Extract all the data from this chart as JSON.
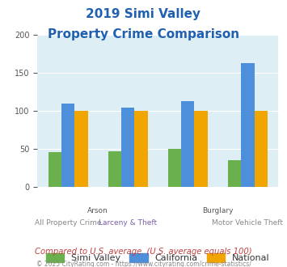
{
  "title_line1": "2019 Simi Valley",
  "title_line2": "Property Crime Comparison",
  "groups": [
    {
      "name": "All Property Crime",
      "simi_valley": 46,
      "california": 110,
      "national": 100
    },
    {
      "name": "Arson / Larceny & Theft",
      "simi_valley": 47,
      "california": 104,
      "national": 100
    },
    {
      "name": "Burglary",
      "simi_valley": 50,
      "california": 113,
      "national": 100
    },
    {
      "name": "Motor Vehicle Theft",
      "simi_valley": 35,
      "california": 163,
      "national": 100
    }
  ],
  "simi_valley_color": "#6ab04c",
  "california_color": "#4d8fdb",
  "national_color": "#f0a500",
  "bg_color": "#ddeef4",
  "ylim": [
    0,
    200
  ],
  "yticks": [
    0,
    50,
    100,
    150,
    200
  ],
  "footnote1": "Compared to U.S. average. (U.S. average equals 100)",
  "footnote2": "© 2025 CityRating.com - https://www.cityrating.com/crime-statistics/",
  "legend_labels": [
    "Simi Valley",
    "California",
    "National"
  ]
}
